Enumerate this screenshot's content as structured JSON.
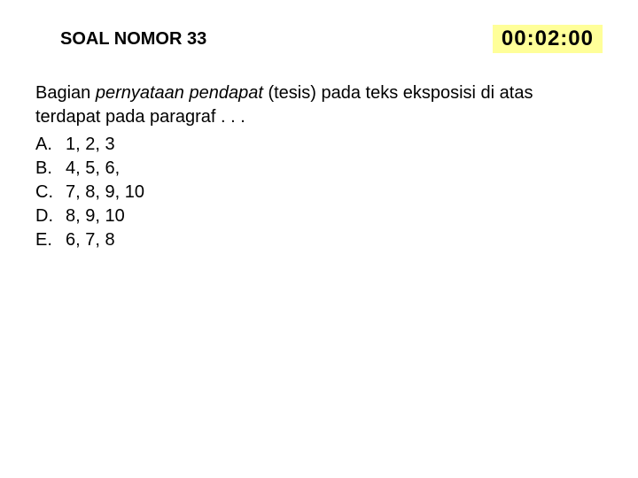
{
  "header": {
    "title": "SOAL NOMOR 33",
    "timer": "00:02:00",
    "timer_bg": "#ffff99",
    "timer_color": "#000000"
  },
  "question": {
    "prefix": "Bagian ",
    "italic_part": "pernyataan pendapat",
    "suffix": " (tesis) pada teks eksposisi di atas terdapat pada paragraf . . ."
  },
  "options": [
    {
      "letter": "A.",
      "text": "1, 2, 3"
    },
    {
      "letter": "B.",
      "text": "4, 5, 6,"
    },
    {
      "letter": "C.",
      "text": "7, 8, 9, 10"
    },
    {
      "letter": "D.",
      "text": "8, 9, 10"
    },
    {
      "letter": "E.",
      "text": "6, 7, 8"
    }
  ],
  "colors": {
    "background": "#ffffff",
    "text": "#000000"
  },
  "typography": {
    "title_fontsize": 20,
    "timer_fontsize": 24,
    "body_fontsize": 20
  }
}
